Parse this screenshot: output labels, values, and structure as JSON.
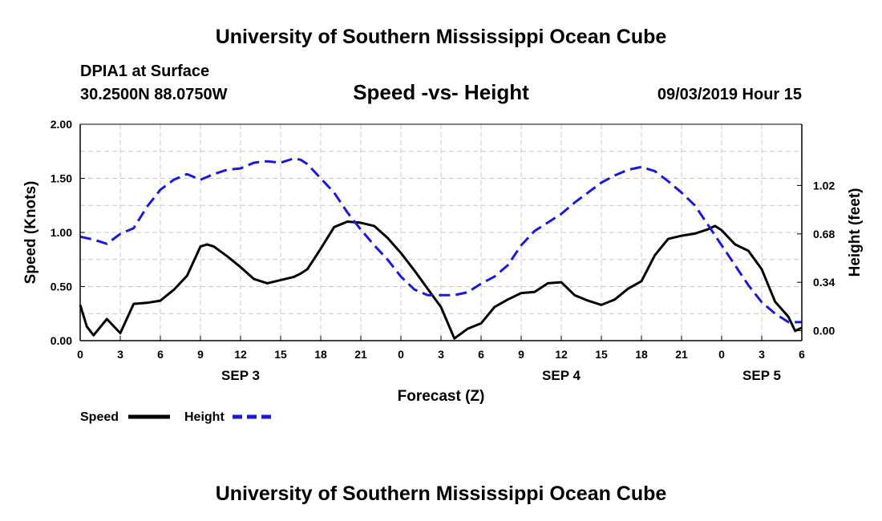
{
  "header": {
    "title_top": "University of Southern Mississippi Ocean Cube",
    "station": "DPIA1 at Surface",
    "coords": "30.2500N 88.0750W",
    "datetime": "09/03/2019 Hour 15"
  },
  "footer": {
    "title_bottom": "University of Southern Mississippi Ocean Cube"
  },
  "colors": {
    "speed": "#000000",
    "height": "#1a1ad6",
    "grid": "#c8c8c8"
  },
  "chart_data": {
    "type": "line",
    "title": "Speed -vs- Height",
    "xlabel": "Forecast (Z)",
    "ylabel_left": "Speed (Knots)",
    "ylabel_right": "Height (feet)",
    "xlim": [
      0,
      54
    ],
    "ylim_left": [
      0,
      2
    ],
    "ylim_right": [
      -0.07,
      1.45
    ],
    "grid": true,
    "x_ticks": [
      0,
      3,
      6,
      9,
      12,
      15,
      18,
      21,
      24,
      27,
      30,
      33,
      36,
      39,
      42,
      45,
      48,
      51,
      54
    ],
    "x_tick_labels": [
      "0",
      "3",
      "6",
      "9",
      "12",
      "15",
      "18",
      "21",
      "0",
      "3",
      "6",
      "9",
      "12",
      "15",
      "18",
      "21",
      "0",
      "3",
      "6"
    ],
    "y_left_ticks": [
      0,
      0.5,
      1.0,
      1.5,
      2.0
    ],
    "y_left_tick_labels": [
      "0.00",
      "0.50",
      "1.00",
      "1.50",
      "2.00"
    ],
    "y_right_ticks": [
      0,
      0.34,
      0.68,
      1.02
    ],
    "y_right_tick_labels": [
      "0.00",
      "0.34",
      "0.68",
      "1.02"
    ],
    "date_labels": [
      {
        "x": 12,
        "label": "SEP 3"
      },
      {
        "x": 36,
        "label": "SEP 4"
      },
      {
        "x": 51,
        "label": "SEP 5"
      }
    ],
    "series": [
      {
        "name": "Speed",
        "axis": "left",
        "style": "solid",
        "x": [
          0,
          0.5,
          1,
          2,
          3,
          4,
          5,
          6,
          7,
          8,
          9,
          9.5,
          10,
          11,
          12,
          13,
          14,
          15,
          16,
          16.5,
          17,
          18,
          19,
          20,
          21,
          22,
          23,
          24,
          25,
          26,
          27,
          28,
          29,
          30,
          31,
          32,
          33,
          34,
          35,
          36,
          37,
          38,
          39,
          40,
          41,
          42,
          43,
          44,
          45,
          46,
          47,
          47.5,
          48,
          49,
          50,
          51,
          52,
          53,
          53.5,
          54
        ],
        "values": [
          0.33,
          0.13,
          0.05,
          0.2,
          0.07,
          0.34,
          0.35,
          0.37,
          0.47,
          0.6,
          0.87,
          0.89,
          0.87,
          0.78,
          0.68,
          0.57,
          0.53,
          0.56,
          0.59,
          0.62,
          0.66,
          0.85,
          1.05,
          1.1,
          1.09,
          1.06,
          0.95,
          0.81,
          0.65,
          0.48,
          0.31,
          0.02,
          0.11,
          0.16,
          0.31,
          0.38,
          0.44,
          0.45,
          0.53,
          0.54,
          0.42,
          0.37,
          0.33,
          0.38,
          0.48,
          0.55,
          0.79,
          0.94,
          0.97,
          0.99,
          1.03,
          1.06,
          1.02,
          0.89,
          0.83,
          0.66,
          0.36,
          0.22,
          0.09,
          0.12
        ]
      },
      {
        "name": "Height",
        "axis": "right",
        "style": "dashed",
        "x": [
          0,
          1,
          2,
          3,
          4,
          5,
          6,
          7,
          8,
          8.5,
          9,
          10,
          11,
          12,
          13,
          14,
          15,
          16,
          16.5,
          17,
          18,
          19,
          20,
          21,
          22,
          23,
          24,
          25,
          26,
          27,
          28,
          29,
          30,
          31,
          32,
          33,
          34,
          35,
          36,
          37,
          38,
          39,
          40,
          41,
          42,
          43,
          44,
          45,
          46,
          47,
          48,
          49,
          50,
          51,
          52,
          53,
          54
        ],
        "values": [
          0.66,
          0.64,
          0.61,
          0.68,
          0.72,
          0.87,
          0.99,
          1.06,
          1.1,
          1.08,
          1.06,
          1.1,
          1.13,
          1.14,
          1.18,
          1.19,
          1.18,
          1.21,
          1.2,
          1.17,
          1.07,
          0.97,
          0.83,
          0.71,
          0.6,
          0.5,
          0.38,
          0.29,
          0.25,
          0.25,
          0.25,
          0.27,
          0.33,
          0.38,
          0.46,
          0.6,
          0.7,
          0.76,
          0.82,
          0.9,
          0.97,
          1.04,
          1.09,
          1.13,
          1.15,
          1.12,
          1.05,
          0.97,
          0.88,
          0.74,
          0.6,
          0.46,
          0.32,
          0.2,
          0.12,
          0.06,
          0.06
        ]
      }
    ],
    "legend": [
      {
        "label": "Speed",
        "style": "solid"
      },
      {
        "label": "Height",
        "style": "dashed"
      }
    ]
  }
}
